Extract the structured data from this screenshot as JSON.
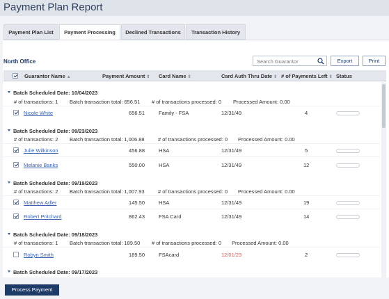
{
  "page": {
    "title": "Payment Plan Report"
  },
  "tabs": [
    {
      "label": "Payment Plan List"
    },
    {
      "label": "Payment Processing"
    },
    {
      "label": "Declined Transactions"
    },
    {
      "label": "Transaction History"
    }
  ],
  "office": "North Office",
  "search": {
    "placeholder": "Search Guarantor"
  },
  "actions": {
    "export": "Export",
    "print": "Print",
    "process": "Process Payment"
  },
  "columns": {
    "guarantor": "Guarantor Name",
    "amount": "Payment Amount",
    "card": "Card Name",
    "thru": "Card Auth Thru Date",
    "left": "# of Payments Left",
    "status": "Status"
  },
  "batches": [
    {
      "header": "Batch Scheduled Date: 10/04/2023",
      "count": "# of transactions: 1",
      "total": "Batch transaction total: 656.51",
      "processed": "# of transactions processed: 0",
      "processed_amount": "Processed Amount: 0.00",
      "rows": [
        {
          "name": "Nicole White",
          "amount": "656.51",
          "card": "Family - FSA",
          "thru": "12/31/49",
          "left": "4",
          "checked": true
        }
      ]
    },
    {
      "header": "Batch Scheduled Date: 09/23/2023",
      "count": "# of transactions: 2",
      "total": "Batch transaction total: 1,006.88",
      "processed": "# of transactions processed: 0",
      "processed_amount": "Processed Amount: 0.00",
      "rows": [
        {
          "name": "Julie Wilkinson",
          "amount": "456.88",
          "card": "HSA",
          "thru": "12/31/49",
          "left": "5",
          "checked": true
        },
        {
          "name": "Melanie Banks",
          "amount": "550.00",
          "card": "HSA",
          "thru": "12/31/49",
          "left": "12",
          "checked": true
        }
      ]
    },
    {
      "header": "Batch Scheduled Date: 09/19/2023",
      "count": "# of transactions: 2",
      "total": "Batch transaction total: 1,007.93",
      "processed": "# of transactions processed: 0",
      "processed_amount": "Processed Amount: 0.00",
      "rows": [
        {
          "name": "Matthew Adler",
          "amount": "145.50",
          "card": "HSA",
          "thru": "12/31/49",
          "left": "19",
          "checked": true
        },
        {
          "name": "Robert Pritchard",
          "amount": "862.43",
          "card": "FSA Card",
          "thru": "12/31/49",
          "left": "14",
          "checked": true
        }
      ]
    },
    {
      "header": "Batch Scheduled Date: 09/18/2023",
      "count": "# of transactions: 1",
      "total": "Batch transaction total: 189.50",
      "processed": "# of transactions processed: 0",
      "processed_amount": "Processed Amount: 0.00",
      "rows": [
        {
          "name": "Robyn  Smith",
          "amount": "189.50",
          "card": "FSAcard",
          "thru": "12/01/23",
          "thru_color": "#d9534f",
          "left": "2",
          "checked": false
        }
      ]
    },
    {
      "header": "Batch Scheduled Date: 09/17/2023"
    }
  ]
}
